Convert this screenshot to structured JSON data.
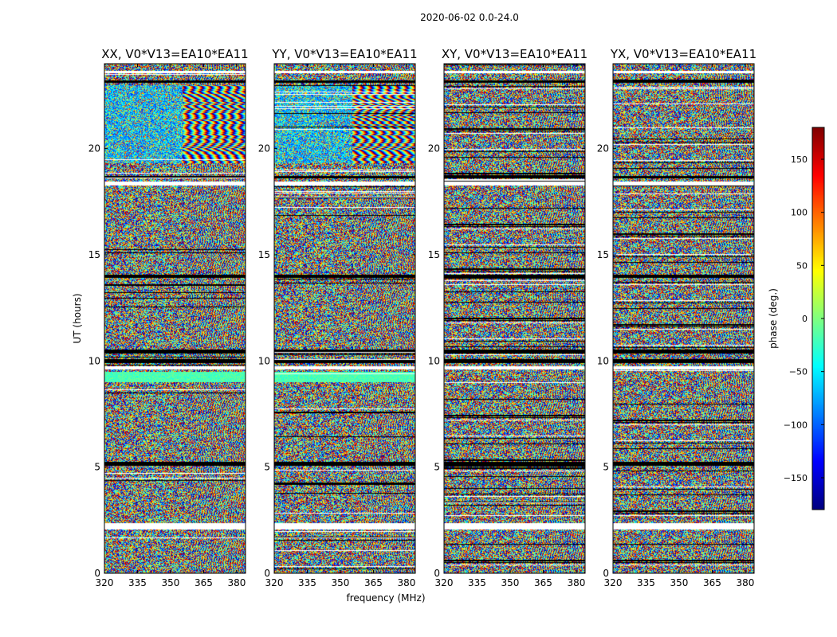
{
  "figure_title": "2020-06-02 0.0-24.0",
  "chart_data": {
    "type": "heatmap",
    "subtype": "waterfall-phase",
    "panels": [
      {
        "title": "XX, V0*V13=EA10*EA11",
        "pol": "XX"
      },
      {
        "title": "YY, V0*V13=EA10*EA11",
        "pol": "YY"
      },
      {
        "title": "XY, V0*V13=EA10*EA11",
        "pol": "XY"
      },
      {
        "title": "YX, V0*V13=EA10*EA11",
        "pol": "YX"
      }
    ],
    "xlabel": "frequency (MHz)",
    "ylabel": "UT (hours)",
    "xlim": [
      320,
      384
    ],
    "ylim": [
      0,
      24
    ],
    "xticks": [
      320,
      335,
      350,
      365,
      380
    ],
    "yticks": [
      0,
      5,
      10,
      15,
      20
    ],
    "colorbar": {
      "label": "phase (deg.)",
      "range": [
        -180,
        180
      ],
      "ticks": [
        -150,
        -100,
        -50,
        0,
        50,
        100,
        150
      ],
      "tick_labels": [
        "−150",
        "−100",
        "−50",
        "0",
        "50",
        "100",
        "150"
      ],
      "colormap": "jet"
    },
    "blank_bands_hours": [
      [
        2.05,
        2.35
      ],
      [
        9.6,
        9.75
      ],
      [
        18.25,
        18.45
      ],
      [
        23.55,
        23.65
      ]
    ],
    "dark_bands_hours": [
      [
        5.05,
        5.25
      ],
      [
        9.9,
        10.1
      ],
      [
        10.35,
        10.55
      ],
      [
        13.9,
        14.05
      ],
      [
        18.6,
        18.7
      ],
      [
        23.1,
        23.2
      ]
    ],
    "coherent_bands": [
      {
        "pol": "XX",
        "range_hours": [
          19.3,
          23.0
        ],
        "note": "structured fringes at high frequency"
      },
      {
        "pol": "YY",
        "range_hours": [
          19.3,
          23.0
        ],
        "note": "structured fringes at high frequency"
      },
      {
        "pol": "XX",
        "range_hours": [
          9.0,
          9.5
        ],
        "note": "near-constant phase band"
      },
      {
        "pol": "YY",
        "range_hours": [
          9.0,
          9.5
        ],
        "note": "near-constant phase band"
      }
    ]
  }
}
